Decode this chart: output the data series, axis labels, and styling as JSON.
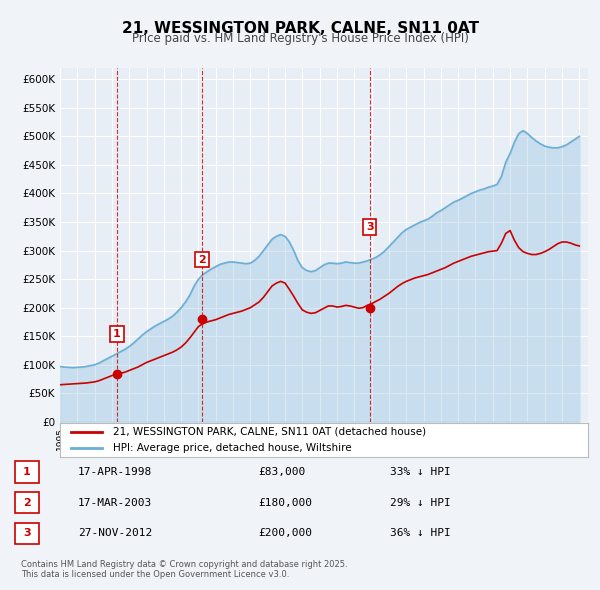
{
  "title": "21, WESSINGTON PARK, CALNE, SN11 0AT",
  "subtitle": "Price paid vs. HM Land Registry's House Price Index (HPI)",
  "background_color": "#f0f4f8",
  "plot_bg_color": "#e8eef5",
  "ylabel": "",
  "ylim": [
    0,
    620000
  ],
  "yticks": [
    0,
    50000,
    100000,
    150000,
    200000,
    250000,
    300000,
    350000,
    400000,
    450000,
    500000,
    550000,
    600000
  ],
  "xlim_start": 1995.0,
  "xlim_end": 2025.5,
  "red_line_color": "#cc0000",
  "blue_line_color": "#6baed6",
  "sale_marker_color": "#cc0000",
  "vline_color": "#cc0000",
  "grid_color": "#ffffff",
  "legend_label_red": "21, WESSINGTON PARK, CALNE, SN11 0AT (detached house)",
  "legend_label_blue": "HPI: Average price, detached house, Wiltshire",
  "sales": [
    {
      "num": 1,
      "date_num": 1998.29,
      "price": 83000,
      "hpi_equiv": 124000
    },
    {
      "num": 2,
      "date_num": 2003.21,
      "price": 180000,
      "hpi_equiv": 254000
    },
    {
      "num": 3,
      "date_num": 2012.9,
      "price": 200000,
      "hpi_equiv": 311000
    }
  ],
  "sale_labels": [
    {
      "num": 1,
      "date": "17-APR-1998",
      "price": "£83,000",
      "pct": "33% ↓ HPI"
    },
    {
      "num": 2,
      "date": "17-MAR-2003",
      "price": "£180,000",
      "pct": "29% ↓ HPI"
    },
    {
      "num": 3,
      "date": "27-NOV-2012",
      "price": "£200,000",
      "pct": "36% ↓ HPI"
    }
  ],
  "hpi_data": {
    "years": [
      1995.0,
      1995.25,
      1995.5,
      1995.75,
      1996.0,
      1996.25,
      1996.5,
      1996.75,
      1997.0,
      1997.25,
      1997.5,
      1997.75,
      1998.0,
      1998.25,
      1998.5,
      1998.75,
      1999.0,
      1999.25,
      1999.5,
      1999.75,
      2000.0,
      2000.25,
      2000.5,
      2000.75,
      2001.0,
      2001.25,
      2001.5,
      2001.75,
      2002.0,
      2002.25,
      2002.5,
      2002.75,
      2003.0,
      2003.25,
      2003.5,
      2003.75,
      2004.0,
      2004.25,
      2004.5,
      2004.75,
      2005.0,
      2005.25,
      2005.5,
      2005.75,
      2006.0,
      2006.25,
      2006.5,
      2006.75,
      2007.0,
      2007.25,
      2007.5,
      2007.75,
      2008.0,
      2008.25,
      2008.5,
      2008.75,
      2009.0,
      2009.25,
      2009.5,
      2009.75,
      2010.0,
      2010.25,
      2010.5,
      2010.75,
      2011.0,
      2011.25,
      2011.5,
      2011.75,
      2012.0,
      2012.25,
      2012.5,
      2012.75,
      2013.0,
      2013.25,
      2013.5,
      2013.75,
      2014.0,
      2014.25,
      2014.5,
      2014.75,
      2015.0,
      2015.25,
      2015.5,
      2015.75,
      2016.0,
      2016.25,
      2016.5,
      2016.75,
      2017.0,
      2017.25,
      2017.5,
      2017.75,
      2018.0,
      2018.25,
      2018.5,
      2018.75,
      2019.0,
      2019.25,
      2019.5,
      2019.75,
      2020.0,
      2020.25,
      2020.5,
      2020.75,
      2021.0,
      2021.25,
      2021.5,
      2021.75,
      2022.0,
      2022.25,
      2022.5,
      2022.75,
      2023.0,
      2023.25,
      2023.5,
      2023.75,
      2024.0,
      2024.25,
      2024.5,
      2024.75,
      2025.0
    ],
    "values": [
      97000,
      96000,
      95500,
      95000,
      95500,
      96000,
      97000,
      98500,
      100000,
      103000,
      107000,
      111000,
      115000,
      119000,
      123000,
      127000,
      132000,
      138000,
      145000,
      152000,
      158000,
      163000,
      168000,
      172000,
      176000,
      180000,
      185000,
      192000,
      200000,
      210000,
      222000,
      238000,
      250000,
      258000,
      263000,
      268000,
      272000,
      276000,
      278000,
      280000,
      280000,
      279000,
      278000,
      277000,
      278000,
      283000,
      290000,
      300000,
      310000,
      320000,
      325000,
      328000,
      325000,
      315000,
      300000,
      282000,
      270000,
      265000,
      263000,
      265000,
      270000,
      275000,
      278000,
      278000,
      277000,
      278000,
      280000,
      279000,
      278000,
      278000,
      280000,
      282000,
      285000,
      288000,
      293000,
      299000,
      307000,
      315000,
      323000,
      331000,
      337000,
      341000,
      345000,
      349000,
      352000,
      355000,
      360000,
      366000,
      370000,
      375000,
      380000,
      385000,
      388000,
      392000,
      396000,
      400000,
      403000,
      406000,
      408000,
      411000,
      413000,
      416000,
      430000,
      455000,
      470000,
      490000,
      505000,
      510000,
      505000,
      498000,
      492000,
      487000,
      483000,
      481000,
      480000,
      480000,
      482000,
      485000,
      490000,
      495000,
      500000
    ]
  },
  "red_data": {
    "years": [
      1995.0,
      1995.25,
      1995.5,
      1995.75,
      1996.0,
      1996.25,
      1996.5,
      1996.75,
      1997.0,
      1997.25,
      1997.5,
      1997.75,
      1998.0,
      1998.25,
      1998.5,
      1998.75,
      1999.0,
      1999.25,
      1999.5,
      1999.75,
      2000.0,
      2000.25,
      2000.5,
      2000.75,
      2001.0,
      2001.25,
      2001.5,
      2001.75,
      2002.0,
      2002.25,
      2002.5,
      2002.75,
      2003.0,
      2003.25,
      2003.5,
      2003.75,
      2004.0,
      2004.25,
      2004.5,
      2004.75,
      2005.0,
      2005.25,
      2005.5,
      2005.75,
      2006.0,
      2006.25,
      2006.5,
      2006.75,
      2007.0,
      2007.25,
      2007.5,
      2007.75,
      2008.0,
      2008.25,
      2008.5,
      2008.75,
      2009.0,
      2009.25,
      2009.5,
      2009.75,
      2010.0,
      2010.25,
      2010.5,
      2010.75,
      2011.0,
      2011.25,
      2011.5,
      2011.75,
      2012.0,
      2012.25,
      2012.5,
      2012.75,
      2013.0,
      2013.25,
      2013.5,
      2013.75,
      2014.0,
      2014.25,
      2014.5,
      2014.75,
      2015.0,
      2015.25,
      2015.5,
      2015.75,
      2016.0,
      2016.25,
      2016.5,
      2016.75,
      2017.0,
      2017.25,
      2017.5,
      2017.75,
      2018.0,
      2018.25,
      2018.5,
      2018.75,
      2019.0,
      2019.25,
      2019.5,
      2019.75,
      2020.0,
      2020.25,
      2020.5,
      2020.75,
      2021.0,
      2021.25,
      2021.5,
      2021.75,
      2022.0,
      2022.25,
      2022.5,
      2022.75,
      2023.0,
      2023.25,
      2023.5,
      2023.75,
      2024.0,
      2024.25,
      2024.5,
      2024.75,
      2025.0
    ],
    "values": [
      65000,
      65500,
      66000,
      66500,
      67000,
      67500,
      68000,
      69000,
      70000,
      72000,
      75000,
      78000,
      81000,
      83000,
      85000,
      87000,
      90000,
      93000,
      96000,
      100000,
      104000,
      107000,
      110000,
      113000,
      116000,
      119000,
      122000,
      126000,
      131000,
      138000,
      147000,
      157000,
      167000,
      172000,
      175000,
      177000,
      179000,
      182000,
      185000,
      188000,
      190000,
      192000,
      194000,
      197000,
      200000,
      205000,
      210000,
      218000,
      228000,
      238000,
      243000,
      246000,
      243000,
      232000,
      220000,
      207000,
      196000,
      192000,
      190000,
      191000,
      195000,
      199000,
      203000,
      203000,
      201000,
      202000,
      204000,
      203000,
      201000,
      199000,
      200000,
      204000,
      207000,
      211000,
      215000,
      220000,
      225000,
      231000,
      237000,
      242000,
      246000,
      249000,
      252000,
      254000,
      256000,
      258000,
      261000,
      264000,
      267000,
      270000,
      274000,
      278000,
      281000,
      284000,
      287000,
      290000,
      292000,
      294000,
      296000,
      298000,
      299000,
      300000,
      313000,
      330000,
      335000,
      318000,
      305000,
      298000,
      295000,
      293000,
      293000,
      295000,
      298000,
      302000,
      307000,
      312000,
      315000,
      315000,
      313000,
      310000,
      308000
    ]
  }
}
